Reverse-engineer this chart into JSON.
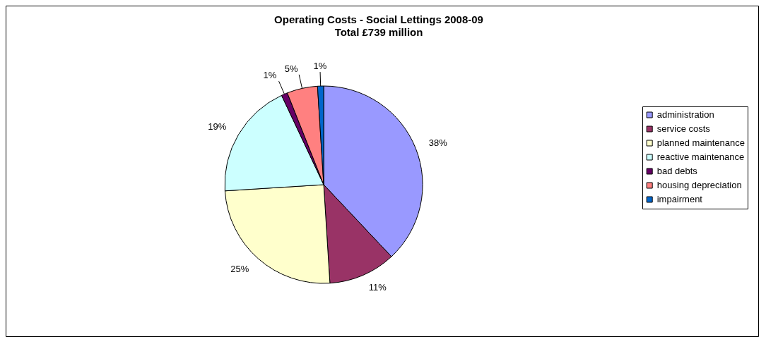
{
  "chart_data": {
    "type": "pie",
    "title": "Operating Costs - Social Lettings 2008-09\nTotal £739 million",
    "categories": [
      "administration",
      "service costs",
      "planned maintenance",
      "reactive maintenance",
      "bad debts",
      "housing depreciation",
      "impairment"
    ],
    "values": [
      38,
      11,
      25,
      19,
      1,
      5,
      1
    ],
    "colors": [
      "#9999ff",
      "#993366",
      "#ffffcc",
      "#ccffff",
      "#660066",
      "#ff8080",
      "#0066cc"
    ],
    "value_labels": [
      "38%",
      "11%",
      "25%",
      "19%",
      "1%",
      "5%",
      "1%"
    ],
    "legend": "right"
  }
}
